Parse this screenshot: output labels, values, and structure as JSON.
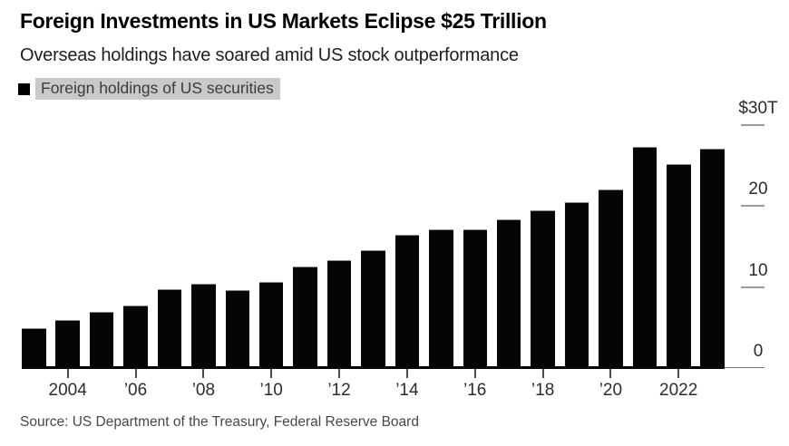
{
  "header": {
    "title": "Foreign Investments in US Markets Eclipse $25 Trillion",
    "subtitle": "Overseas holdings have soared amid US stock outperformance"
  },
  "legend": {
    "label": "Foreign holdings of US securities",
    "swatch_color": "#000000",
    "highlight_color": "#c9c9c9"
  },
  "source": {
    "text": "Source: US Department of the Treasury, Federal Reserve Board"
  },
  "chart_data": {
    "type": "bar",
    "title": "Foreign Investments in US Markets Eclipse $25 Trillion",
    "subtitle": "Overseas holdings have soared amid US stock outperformance",
    "series_name": "Foreign holdings of US securities",
    "unit": "USD trillions",
    "bar_color": "#050505",
    "grid": false,
    "legend_position": "top-left",
    "categories": [
      2003,
      2004,
      2005,
      2006,
      2007,
      2008,
      2009,
      2010,
      2011,
      2012,
      2013,
      2014,
      2015,
      2016,
      2017,
      2018,
      2019,
      2020,
      2021,
      2022,
      2023
    ],
    "values": [
      4.9,
      5.9,
      6.9,
      7.7,
      9.7,
      10.4,
      9.6,
      10.6,
      12.5,
      13.3,
      14.5,
      16.4,
      17.1,
      17.1,
      18.3,
      19.4,
      20.5,
      22.0,
      27.3,
      25.1,
      27.0
    ],
    "ylim": [
      0,
      30
    ],
    "y_axis": {
      "side": "right",
      "ticks": [
        {
          "value": 30,
          "label": "$30T"
        },
        {
          "value": 20,
          "label": "20"
        },
        {
          "value": 10,
          "label": "10"
        },
        {
          "value": 0,
          "label": "0"
        }
      ]
    },
    "x_axis": {
      "ticks": [
        {
          "year": 2004,
          "label": "2004"
        },
        {
          "year": 2006,
          "label": "’06"
        },
        {
          "year": 2008,
          "label": "’08"
        },
        {
          "year": 2010,
          "label": "’10"
        },
        {
          "year": 2012,
          "label": "’12"
        },
        {
          "year": 2014,
          "label": "’14"
        },
        {
          "year": 2016,
          "label": "’16"
        },
        {
          "year": 2018,
          "label": "’18"
        },
        {
          "year": 2020,
          "label": "’20"
        },
        {
          "year": 2022,
          "label": "2022"
        }
      ]
    }
  }
}
